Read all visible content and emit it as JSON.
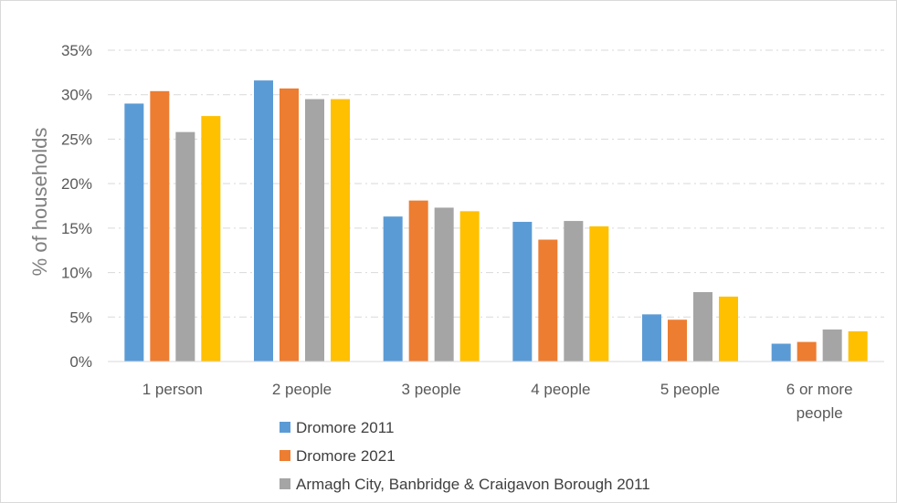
{
  "chart_data": {
    "type": "bar",
    "ylabel": "% of households",
    "xlabel": "",
    "ylim": [
      0,
      35
    ],
    "y_ticks": [
      "0%",
      "5%",
      "10%",
      "15%",
      "20%",
      "25%",
      "30%",
      "35%"
    ],
    "grid": "horizontal dashed",
    "legend_position": "bottom-left",
    "categories": [
      "1 person",
      "2 people",
      "3 people",
      "4 people",
      "5 people",
      "6  or more people"
    ],
    "series": [
      {
        "name": "Dromore 2011",
        "color": "#5b9bd5",
        "values": [
          29.0,
          31.6,
          16.3,
          15.7,
          5.3,
          2.0
        ]
      },
      {
        "name": "Dromore 2021",
        "color": "#ed7d31",
        "values": [
          30.4,
          30.7,
          18.1,
          13.7,
          4.7,
          2.2
        ]
      },
      {
        "name": "Armagh City, Banbridge & Craigavon Borough  2011",
        "color": "#a5a5a5",
        "values": [
          25.8,
          29.5,
          17.3,
          15.8,
          7.8,
          3.6
        ]
      },
      {
        "name": "",
        "color": "#ffc000",
        "values": [
          27.6,
          29.5,
          16.9,
          15.2,
          7.3,
          3.4
        ]
      }
    ]
  }
}
